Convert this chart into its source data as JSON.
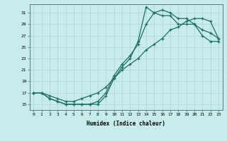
{
  "title": "",
  "xlabel": "Humidex (Indice chaleur)",
  "ylabel": "",
  "bg_color": "#c8ecec",
  "line_color": "#1a7068",
  "grid_color": "#b0d8d8",
  "xlim": [
    -0.5,
    23.5
  ],
  "ylim": [
    14,
    32.5
  ],
  "xticks": [
    0,
    1,
    2,
    3,
    4,
    5,
    6,
    7,
    8,
    9,
    10,
    11,
    12,
    13,
    14,
    15,
    16,
    17,
    18,
    19,
    20,
    21,
    22,
    23
  ],
  "yticks": [
    15,
    17,
    19,
    21,
    23,
    25,
    27,
    29,
    31
  ],
  "curve1_x": [
    0,
    1,
    2,
    3,
    4,
    5,
    6,
    7,
    8,
    9,
    10,
    11,
    12,
    13,
    14,
    15,
    16,
    17,
    18,
    19,
    20,
    21,
    22,
    23
  ],
  "curve1_y": [
    17,
    17,
    16,
    15.5,
    15,
    15,
    15,
    15,
    15,
    16.5,
    19.5,
    21.5,
    23,
    26,
    32,
    31,
    31.5,
    31,
    30,
    30,
    29,
    28,
    27.5,
    26.5
  ],
  "curve2_x": [
    0,
    1,
    2,
    3,
    4,
    5,
    6,
    7,
    8,
    9,
    10,
    11,
    12,
    13,
    14,
    15,
    16,
    17,
    18,
    19,
    20,
    21,
    22,
    23
  ],
  "curve2_y": [
    17,
    17,
    16,
    15.5,
    15,
    15,
    15,
    15,
    15.5,
    17,
    20,
    22,
    23.5,
    25.5,
    29,
    31,
    30.5,
    30.5,
    29,
    29,
    29,
    27,
    26,
    26
  ],
  "curve3_x": [
    0,
    1,
    2,
    3,
    4,
    5,
    6,
    7,
    8,
    9,
    10,
    11,
    12,
    13,
    14,
    15,
    16,
    17,
    18,
    19,
    20,
    21,
    22,
    23
  ],
  "curve3_y": [
    17,
    17,
    16.5,
    16,
    15.5,
    15.5,
    16,
    16.5,
    17,
    18,
    19.5,
    21,
    22,
    23,
    24.5,
    25.5,
    26.5,
    28,
    28.5,
    29.5,
    30,
    30,
    29.5,
    26.5
  ]
}
